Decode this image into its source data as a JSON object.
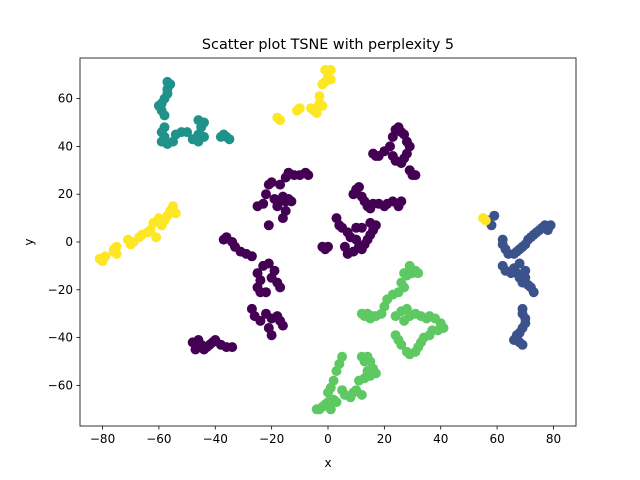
{
  "chart_data": {
    "type": "scatter",
    "title": "Scatter plot TSNE with perplexity 5",
    "xlabel": "x",
    "ylabel": "y",
    "xlim": [
      -88,
      88
    ],
    "ylim": [
      -77,
      77
    ],
    "xticks": [
      -80,
      -60,
      -40,
      -20,
      0,
      20,
      40,
      60,
      80
    ],
    "yticks": [
      -60,
      -40,
      -20,
      0,
      20,
      40,
      60
    ],
    "xtick_labels": [
      "−80",
      "−60",
      "−40",
      "−20",
      "0",
      "20",
      "40",
      "60",
      "80"
    ],
    "ytick_labels": [
      "−60",
      "−40",
      "−20",
      "0",
      "20",
      "40",
      "60"
    ],
    "grid": false,
    "legend": "none",
    "colormap": "viridis",
    "series": [
      {
        "color": "#440154",
        "points": [
          [
            -37,
            1
          ],
          [
            -36,
            2
          ],
          [
            -34,
            0
          ],
          [
            -33,
            -2
          ],
          [
            -31,
            -4
          ],
          [
            -29,
            -5
          ],
          [
            -27,
            -6
          ],
          [
            -23,
            -10
          ],
          [
            -21,
            -9
          ],
          [
            -19,
            -12
          ],
          [
            -20,
            -15
          ],
          [
            -18,
            -17
          ],
          [
            -17,
            -19
          ],
          [
            -25,
            -13
          ],
          [
            -24,
            -16
          ],
          [
            -25,
            -19
          ],
          [
            -24,
            -21
          ],
          [
            -22,
            -21
          ],
          [
            -27,
            -28
          ],
          [
            -26,
            -31
          ],
          [
            -24,
            -33
          ],
          [
            -22,
            -30
          ],
          [
            -20,
            -32
          ],
          [
            -18,
            -31
          ],
          [
            -17,
            -33
          ],
          [
            -16,
            -35
          ],
          [
            -21,
            -36
          ],
          [
            -20,
            -39
          ],
          [
            -25,
            15
          ],
          [
            -23,
            16
          ],
          [
            -22,
            20
          ],
          [
            -21,
            24
          ],
          [
            -20,
            25
          ],
          [
            -19,
            18
          ],
          [
            -18,
            15
          ],
          [
            -17,
            17
          ],
          [
            -16,
            19
          ],
          [
            -15,
            17
          ],
          [
            -14,
            18
          ],
          [
            -13,
            17
          ],
          [
            -15,
            13
          ],
          [
            -16,
            10
          ],
          [
            -21,
            7
          ],
          [
            -17,
            24
          ],
          [
            -14,
            29
          ],
          [
            -15,
            27
          ],
          [
            -12,
            28
          ],
          [
            -10,
            28
          ],
          [
            -8,
            29
          ],
          [
            -7,
            28
          ],
          [
            -48,
            -42
          ],
          [
            -46,
            -41
          ],
          [
            -45,
            -43
          ],
          [
            -44,
            -45
          ],
          [
            -47,
            -45
          ],
          [
            -42,
            -43
          ],
          [
            -41,
            -42
          ],
          [
            -40,
            -41
          ],
          [
            -38,
            -43
          ],
          [
            -36,
            -44
          ],
          [
            -34,
            -44
          ],
          [
            -43,
            -44
          ],
          [
            -2,
            -2
          ],
          [
            -1,
            -3
          ],
          [
            0,
            -2
          ],
          [
            3,
            10
          ],
          [
            4,
            7
          ],
          [
            5,
            6
          ],
          [
            7,
            4
          ],
          [
            8,
            2
          ],
          [
            10,
            1
          ],
          [
            11,
            -2
          ],
          [
            12,
            -3
          ],
          [
            13,
            -1
          ],
          [
            14,
            1
          ],
          [
            15,
            3
          ],
          [
            16,
            5
          ],
          [
            17,
            7
          ],
          [
            15,
            8
          ],
          [
            12,
            6
          ],
          [
            10,
            6
          ],
          [
            6,
            -2
          ],
          [
            7,
            -5
          ],
          [
            9,
            -4
          ],
          [
            9,
            20
          ],
          [
            10,
            22
          ],
          [
            11,
            23
          ],
          [
            12,
            19
          ],
          [
            13,
            17
          ],
          [
            14,
            15
          ],
          [
            15,
            14
          ],
          [
            16,
            16
          ],
          [
            18,
            16
          ],
          [
            20,
            15
          ],
          [
            21,
            16
          ],
          [
            23,
            17
          ],
          [
            25,
            15
          ],
          [
            26,
            17
          ],
          [
            16,
            37
          ],
          [
            17,
            36
          ],
          [
            18,
            36
          ],
          [
            20,
            38
          ],
          [
            22,
            40
          ],
          [
            23,
            44
          ],
          [
            24,
            47
          ],
          [
            25,
            48
          ],
          [
            26,
            46
          ],
          [
            27,
            45
          ],
          [
            28,
            42
          ],
          [
            29,
            40
          ],
          [
            28,
            37
          ],
          [
            27,
            35
          ],
          [
            26,
            33
          ],
          [
            24,
            34
          ],
          [
            23,
            36
          ],
          [
            29,
            30
          ],
          [
            30,
            28
          ],
          [
            31,
            28
          ]
        ]
      },
      {
        "color": "#3b528b",
        "points": [
          [
            57,
            9
          ],
          [
            58,
            7
          ],
          [
            59,
            11
          ],
          [
            62,
            1
          ],
          [
            62,
            -1
          ],
          [
            63,
            -3
          ],
          [
            64,
            -5
          ],
          [
            66,
            -5
          ],
          [
            67,
            -4
          ],
          [
            68,
            -3
          ],
          [
            69,
            -2
          ],
          [
            70,
            -1
          ],
          [
            71,
            1
          ],
          [
            72,
            2
          ],
          [
            73,
            3
          ],
          [
            74,
            4
          ],
          [
            75,
            5
          ],
          [
            76,
            6
          ],
          [
            77,
            7
          ],
          [
            78,
            5
          ],
          [
            79,
            7
          ],
          [
            62,
            -10
          ],
          [
            63,
            -12
          ],
          [
            65,
            -13
          ],
          [
            66,
            -11
          ],
          [
            67,
            -13
          ],
          [
            68,
            -15
          ],
          [
            69,
            -17
          ],
          [
            70,
            -15
          ],
          [
            71,
            -18
          ],
          [
            72,
            -19
          ],
          [
            73,
            -21
          ],
          [
            70,
            -12
          ],
          [
            68,
            -9
          ],
          [
            69,
            -28
          ],
          [
            69,
            -30
          ],
          [
            70,
            -32
          ],
          [
            70,
            -34
          ],
          [
            69,
            -36
          ],
          [
            68,
            -38
          ],
          [
            67,
            -40
          ],
          [
            68,
            -42
          ],
          [
            69,
            -43
          ],
          [
            67,
            -39
          ],
          [
            66,
            -41
          ]
        ]
      },
      {
        "color": "#21918c",
        "points": [
          [
            -57,
            67
          ],
          [
            -56,
            66
          ],
          [
            -57,
            64
          ],
          [
            -57,
            62
          ],
          [
            -58,
            60
          ],
          [
            -59,
            58
          ],
          [
            -60,
            57
          ],
          [
            -59,
            55
          ],
          [
            -58,
            53
          ],
          [
            -58,
            48
          ],
          [
            -59,
            46
          ],
          [
            -58,
            44
          ],
          [
            -59,
            42
          ],
          [
            -57,
            41
          ],
          [
            -55,
            42
          ],
          [
            -54,
            45
          ],
          [
            -52,
            46
          ],
          [
            -50,
            46
          ],
          [
            -48,
            43
          ],
          [
            -46,
            42
          ],
          [
            -44,
            44
          ],
          [
            -46,
            45
          ],
          [
            -45,
            48
          ],
          [
            -45,
            50
          ],
          [
            -46,
            51
          ],
          [
            -44,
            50
          ],
          [
            -38,
            44
          ],
          [
            -37,
            45
          ],
          [
            -36,
            44
          ],
          [
            -35,
            43
          ]
        ]
      },
      {
        "color": "#5ec962",
        "points": [
          [
            27,
            -13
          ],
          [
            28,
            -14
          ],
          [
            30,
            -13
          ],
          [
            31,
            -12
          ],
          [
            29,
            -10
          ],
          [
            32,
            -13
          ],
          [
            26,
            -17
          ],
          [
            27,
            -19
          ],
          [
            25,
            -21
          ],
          [
            23,
            -22
          ],
          [
            21,
            -24
          ],
          [
            20,
            -27
          ],
          [
            19,
            -30
          ],
          [
            17,
            -31
          ],
          [
            15,
            -32
          ],
          [
            13,
            -31
          ],
          [
            12,
            -30
          ],
          [
            14,
            -30
          ],
          [
            16,
            -31
          ],
          [
            24,
            -31
          ],
          [
            26,
            -29
          ],
          [
            28,
            -28
          ],
          [
            27,
            -33
          ],
          [
            29,
            -31
          ],
          [
            31,
            -30
          ],
          [
            33,
            -31
          ],
          [
            35,
            -32
          ],
          [
            36,
            -31
          ],
          [
            38,
            -32
          ],
          [
            40,
            -34
          ],
          [
            41,
            -36
          ],
          [
            39,
            -37
          ],
          [
            37,
            -37
          ],
          [
            36,
            -39
          ],
          [
            34,
            -40
          ],
          [
            33,
            -42
          ],
          [
            32,
            -44
          ],
          [
            31,
            -46
          ],
          [
            29,
            -47
          ],
          [
            28,
            -46
          ],
          [
            26,
            -43
          ],
          [
            25,
            -41
          ],
          [
            24,
            -39
          ],
          [
            12,
            -48
          ],
          [
            13,
            -50
          ],
          [
            14,
            -48
          ],
          [
            15,
            -50
          ],
          [
            16,
            -53
          ],
          [
            17,
            -55
          ],
          [
            15,
            -56
          ],
          [
            14,
            -54
          ],
          [
            13,
            -57
          ],
          [
            11,
            -58
          ],
          [
            5,
            -48
          ],
          [
            4,
            -51
          ],
          [
            3,
            -54
          ],
          [
            2,
            -58
          ],
          [
            1,
            -61
          ],
          [
            0,
            -63
          ],
          [
            2,
            -66
          ],
          [
            3,
            -67
          ],
          [
            0,
            -67
          ],
          [
            -1,
            -68
          ],
          [
            1,
            -70
          ],
          [
            -2,
            -69
          ],
          [
            -4,
            -70
          ],
          [
            -3,
            -70
          ],
          [
            5,
            -62
          ],
          [
            6,
            -64
          ],
          [
            8,
            -65
          ],
          [
            9,
            -63
          ],
          [
            10,
            -62
          ],
          [
            12,
            -64
          ]
        ]
      },
      {
        "color": "#fde725",
        "points": [
          [
            -1,
            72
          ],
          [
            0,
            71
          ],
          [
            1,
            72
          ],
          [
            0,
            69
          ],
          [
            -1,
            67
          ],
          [
            1,
            68
          ],
          [
            -2,
            66
          ],
          [
            -3,
            61
          ],
          [
            -3,
            58
          ],
          [
            -2,
            57
          ],
          [
            -4,
            56
          ],
          [
            -5,
            55
          ],
          [
            -6,
            56
          ],
          [
            -4,
            54
          ],
          [
            -10,
            56
          ],
          [
            -11,
            55
          ],
          [
            -17,
            51
          ],
          [
            -18,
            52
          ],
          [
            -55,
            15
          ],
          [
            -56,
            13
          ],
          [
            -54,
            12
          ],
          [
            -57,
            11
          ],
          [
            -58,
            9
          ],
          [
            -59,
            7
          ],
          [
            -60,
            10
          ],
          [
            -62,
            8
          ],
          [
            -63,
            5
          ],
          [
            -64,
            4
          ],
          [
            -66,
            3
          ],
          [
            -67,
            2
          ],
          [
            -69,
            0
          ],
          [
            -70,
            -1
          ],
          [
            -71,
            1
          ],
          [
            -61,
            2
          ],
          [
            -75,
            -2
          ],
          [
            -76,
            -3
          ],
          [
            -75,
            -5
          ],
          [
            -76,
            -4
          ],
          [
            -79,
            -6
          ],
          [
            -80,
            -7
          ],
          [
            -81,
            -7
          ],
          [
            -80,
            -8
          ],
          [
            55,
            10
          ],
          [
            56,
            9
          ]
        ]
      }
    ]
  }
}
